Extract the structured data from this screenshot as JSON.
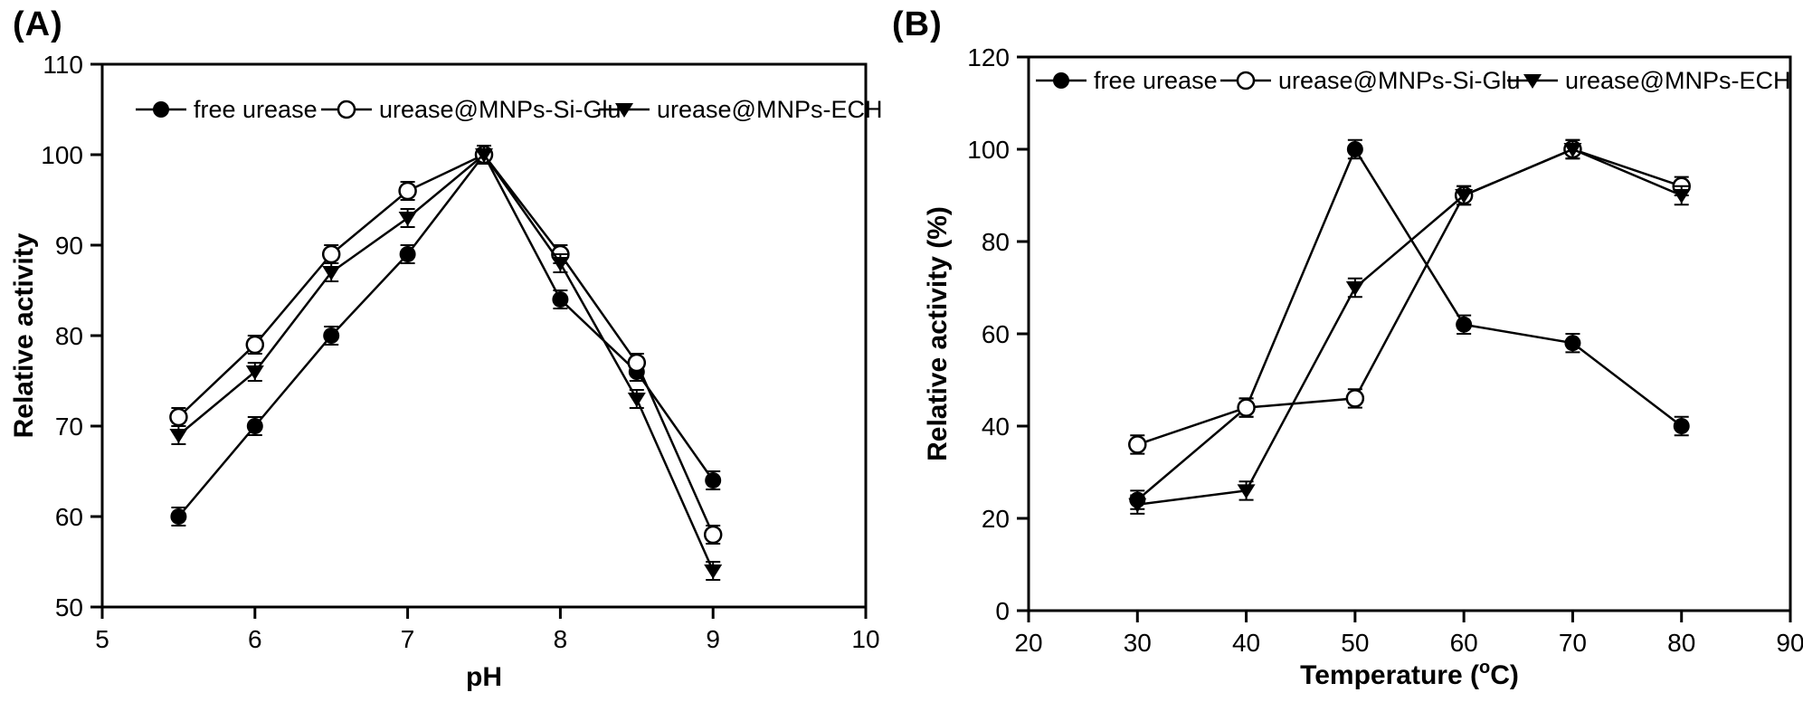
{
  "figure": {
    "background": "#ffffff",
    "foreground": "#000000"
  },
  "chart_data": [
    {
      "panel_label": "(A)",
      "type": "line",
      "title": "",
      "xlabel": "pH",
      "ylabel": "Relative activity",
      "xlim": [
        5,
        10
      ],
      "ylim": [
        50,
        110
      ],
      "xticks": [
        5,
        6,
        7,
        8,
        9,
        10
      ],
      "yticks": [
        50,
        60,
        70,
        80,
        90,
        100,
        110
      ],
      "grid": false,
      "legend_position": "top-inside",
      "x": [
        5.5,
        6,
        6.5,
        7,
        7.5,
        8,
        8.5,
        9
      ],
      "yerr": 1,
      "series": [
        {
          "name": "free urease",
          "marker": "filled-circle",
          "values": [
            60,
            70,
            80,
            89,
            100,
            84,
            76,
            64
          ]
        },
        {
          "name": "urease@MNPs-Si-Glu",
          "marker": "open-circle",
          "values": [
            71,
            79,
            89,
            96,
            100,
            89,
            77,
            58
          ]
        },
        {
          "name": "urease@MNPs-ECH",
          "marker": "filled-triangle-down",
          "values": [
            69,
            76,
            87,
            93,
            100,
            88,
            73,
            54
          ]
        }
      ]
    },
    {
      "panel_label": "(B)",
      "type": "line",
      "title": "",
      "xlabel": "Temperature (°C)",
      "ylabel": "Relative activity (%)",
      "xlim": [
        20,
        90
      ],
      "ylim": [
        0,
        120
      ],
      "xticks": [
        20,
        30,
        40,
        50,
        60,
        70,
        80,
        90
      ],
      "yticks": [
        0,
        20,
        40,
        60,
        80,
        100,
        120
      ],
      "grid": false,
      "legend_position": "top-inside",
      "x": [
        30,
        40,
        50,
        60,
        70,
        80
      ],
      "yerr": 2,
      "series": [
        {
          "name": "free urease",
          "marker": "filled-circle",
          "values": [
            24,
            44,
            100,
            62,
            58,
            40
          ]
        },
        {
          "name": "urease@MNPs-Si-Glu",
          "marker": "open-circle",
          "values": [
            36,
            44,
            46,
            90,
            100,
            92
          ]
        },
        {
          "name": "urease@MNPs-ECH",
          "marker": "filled-triangle-down",
          "values": [
            23,
            26,
            70,
            90,
            100,
            90
          ]
        }
      ]
    }
  ]
}
